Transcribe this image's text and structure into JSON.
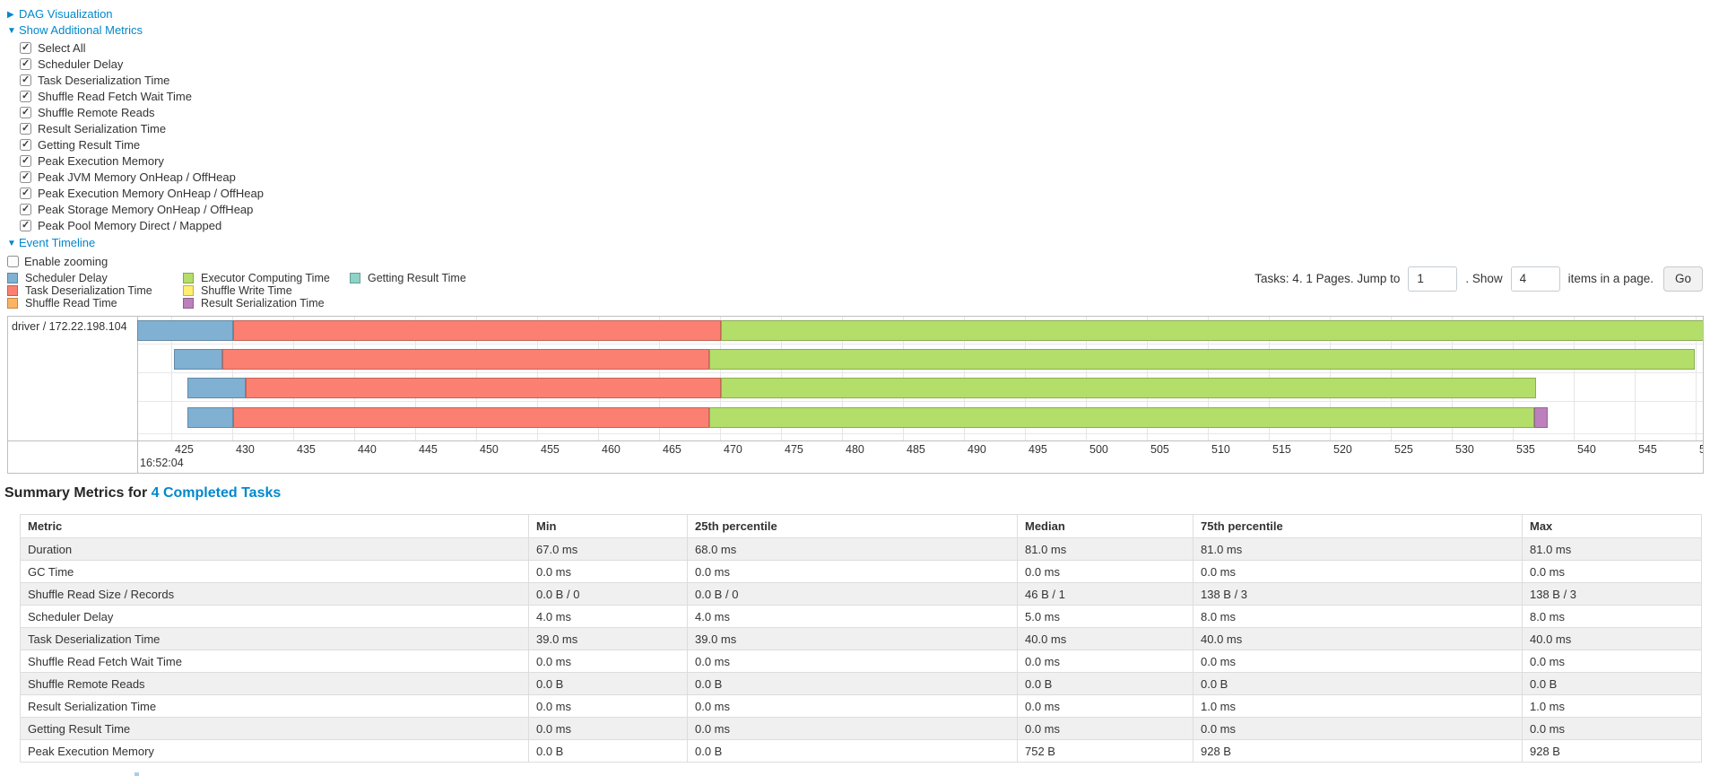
{
  "links": {
    "dag": "DAG Visualization",
    "metrics": "Show Additional Metrics",
    "event_timeline": "Event Timeline"
  },
  "metric_options": [
    "Select All",
    "Scheduler Delay",
    "Task Deserialization Time",
    "Shuffle Read Fetch Wait Time",
    "Shuffle Remote Reads",
    "Result Serialization Time",
    "Getting Result Time",
    "Peak Execution Memory",
    "Peak JVM Memory OnHeap / OffHeap",
    "Peak Execution Memory OnHeap / OffHeap",
    "Peak Storage Memory OnHeap / OffHeap",
    "Peak Pool Memory Direct / Mapped"
  ],
  "enable_zooming": {
    "label": "Enable zooming",
    "checked": false
  },
  "legend": {
    "columns": [
      [
        {
          "label": "Scheduler Delay",
          "kind": "scheduler_delay"
        },
        {
          "label": "Task Deserialization Time",
          "kind": "task_deserialization"
        },
        {
          "label": "Shuffle Read Time",
          "kind": "shuffle_read"
        }
      ],
      [
        {
          "label": "Executor Computing Time",
          "kind": "executor_computing"
        },
        {
          "label": "Shuffle Write Time",
          "kind": "shuffle_write"
        },
        {
          "label": "Result Serialization Time",
          "kind": "result_serialization"
        }
      ],
      [
        {
          "label": "Getting Result Time",
          "kind": "getting_result"
        }
      ]
    ]
  },
  "pagination": {
    "summary_text": "Tasks: 4. 1 Pages. Jump to",
    "jump_input": "1",
    "show_text": ". Show",
    "show_input": "4",
    "items_text": "items in a page.",
    "go_label": "Go"
  },
  "chart_data": {
    "type": "timeline",
    "group_label": "driver / 172.22.198.104",
    "x_axis": {
      "start": 425,
      "end": 550,
      "step": 5,
      "base_time_label": "16:52:04"
    },
    "colors": {
      "scheduler_delay": "#80B1D3",
      "task_deserialization": "#FB8072",
      "shuffle_read": "#FDB462",
      "executor_computing": "#B3DE69",
      "shuffle_write": "#FFED6F",
      "result_serialization": "#BC80BD",
      "getting_result": "#8DD3C7"
    },
    "rows": [
      {
        "segments": [
          {
            "kind": "scheduler_delay",
            "t0": 422.2,
            "t1": 430.1
          },
          {
            "kind": "task_deserialization",
            "t0": 430.1,
            "t1": 470.1
          },
          {
            "kind": "executor_computing",
            "t0": 470.1,
            "t1": 551.5
          }
        ]
      },
      {
        "segments": [
          {
            "kind": "scheduler_delay",
            "t0": 425.2,
            "t1": 429.2
          },
          {
            "kind": "task_deserialization",
            "t0": 429.2,
            "t1": 469.1
          },
          {
            "kind": "executor_computing",
            "t0": 469.1,
            "t1": 549.9
          }
        ]
      },
      {
        "segments": [
          {
            "kind": "scheduler_delay",
            "t0": 426.3,
            "t1": 431.1
          },
          {
            "kind": "task_deserialization",
            "t0": 431.1,
            "t1": 470.1
          },
          {
            "kind": "executor_computing",
            "t0": 470.1,
            "t1": 536.9
          }
        ]
      },
      {
        "segments": [
          {
            "kind": "scheduler_delay",
            "t0": 426.3,
            "t1": 430.1
          },
          {
            "kind": "task_deserialization",
            "t0": 430.1,
            "t1": 469.1
          },
          {
            "kind": "executor_computing",
            "t0": 469.1,
            "t1": 536.8
          },
          {
            "kind": "result_serialization",
            "t0": 536.8,
            "t1": 537.9
          }
        ]
      }
    ]
  },
  "summary": {
    "title_prefix": "Summary Metrics for",
    "title_link": "4 Completed Tasks",
    "headers": [
      "Metric",
      "Min",
      "25th percentile",
      "Median",
      "75th percentile",
      "Max"
    ],
    "rows": [
      [
        "Duration",
        "67.0 ms",
        "68.0 ms",
        "81.0 ms",
        "81.0 ms",
        "81.0 ms"
      ],
      [
        "GC Time",
        "0.0 ms",
        "0.0 ms",
        "0.0 ms",
        "0.0 ms",
        "0.0 ms"
      ],
      [
        "Shuffle Read Size / Records",
        "0.0 B / 0",
        "0.0 B / 0",
        "46 B / 1",
        "138 B / 3",
        "138 B / 3"
      ],
      [
        "Scheduler Delay",
        "4.0 ms",
        "4.0 ms",
        "5.0 ms",
        "8.0 ms",
        "8.0 ms"
      ],
      [
        "Task Deserialization Time",
        "39.0 ms",
        "39.0 ms",
        "40.0 ms",
        "40.0 ms",
        "40.0 ms"
      ],
      [
        "Shuffle Read Fetch Wait Time",
        "0.0 ms",
        "0.0 ms",
        "0.0 ms",
        "0.0 ms",
        "0.0 ms"
      ],
      [
        "Shuffle Remote Reads",
        "0.0 B",
        "0.0 B",
        "0.0 B",
        "0.0 B",
        "0.0 B"
      ],
      [
        "Result Serialization Time",
        "0.0 ms",
        "0.0 ms",
        "0.0 ms",
        "1.0 ms",
        "1.0 ms"
      ],
      [
        "Getting Result Time",
        "0.0 ms",
        "0.0 ms",
        "0.0 ms",
        "0.0 ms",
        "0.0 ms"
      ],
      [
        "Peak Execution Memory",
        "0.0 B",
        "0.0 B",
        "752 B",
        "928 B",
        "928 B"
      ]
    ]
  }
}
